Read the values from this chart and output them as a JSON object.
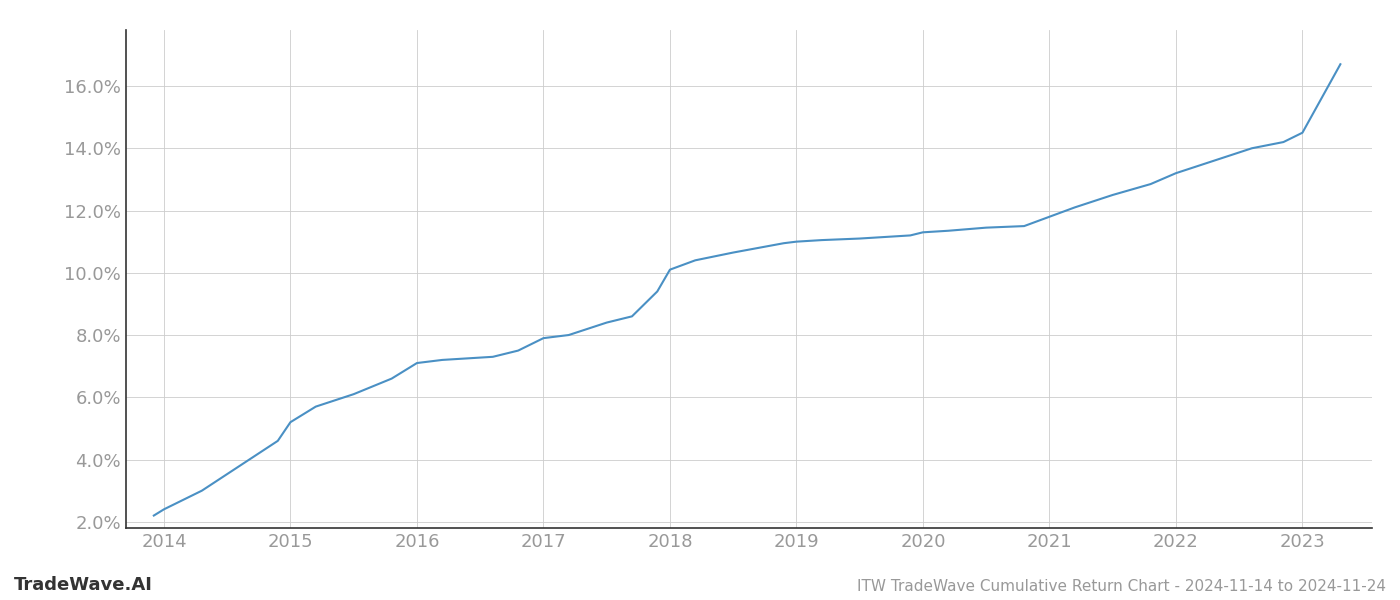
{
  "title": "ITW TradeWave Cumulative Return Chart - 2024-11-14 to 2024-11-24",
  "watermark": "TradeWave.AI",
  "line_color": "#4a90c4",
  "background_color": "#ffffff",
  "grid_color": "#cccccc",
  "x_values": [
    2013.92,
    2014.0,
    2014.3,
    2014.6,
    2014.9,
    2015.0,
    2015.2,
    2015.5,
    2015.8,
    2016.0,
    2016.2,
    2016.4,
    2016.6,
    2016.8,
    2017.0,
    2017.2,
    2017.5,
    2017.7,
    2017.9,
    2018.0,
    2018.2,
    2018.5,
    2018.7,
    2018.9,
    2019.0,
    2019.2,
    2019.5,
    2019.7,
    2019.9,
    2020.0,
    2020.2,
    2020.5,
    2020.8,
    2021.0,
    2021.2,
    2021.5,
    2021.8,
    2022.0,
    2022.3,
    2022.6,
    2022.85,
    2023.0,
    2023.3
  ],
  "y_values": [
    2.2,
    2.4,
    3.0,
    3.8,
    4.6,
    5.2,
    5.7,
    6.1,
    6.6,
    7.1,
    7.2,
    7.25,
    7.3,
    7.5,
    7.9,
    8.0,
    8.4,
    8.6,
    9.4,
    10.1,
    10.4,
    10.65,
    10.8,
    10.95,
    11.0,
    11.05,
    11.1,
    11.15,
    11.2,
    11.3,
    11.35,
    11.45,
    11.5,
    11.8,
    12.1,
    12.5,
    12.85,
    13.2,
    13.6,
    14.0,
    14.2,
    14.5,
    16.7
  ],
  "xlim": [
    2013.7,
    2023.55
  ],
  "ylim": [
    1.8,
    17.8
  ],
  "yticks": [
    2.0,
    4.0,
    6.0,
    8.0,
    10.0,
    12.0,
    14.0,
    16.0
  ],
  "xticks": [
    2014,
    2015,
    2016,
    2017,
    2018,
    2019,
    2020,
    2021,
    2022,
    2023
  ],
  "label_color": "#999999",
  "axis_color": "#333333",
  "line_width": 1.5,
  "title_fontsize": 11,
  "tick_fontsize": 13,
  "watermark_fontsize": 13
}
